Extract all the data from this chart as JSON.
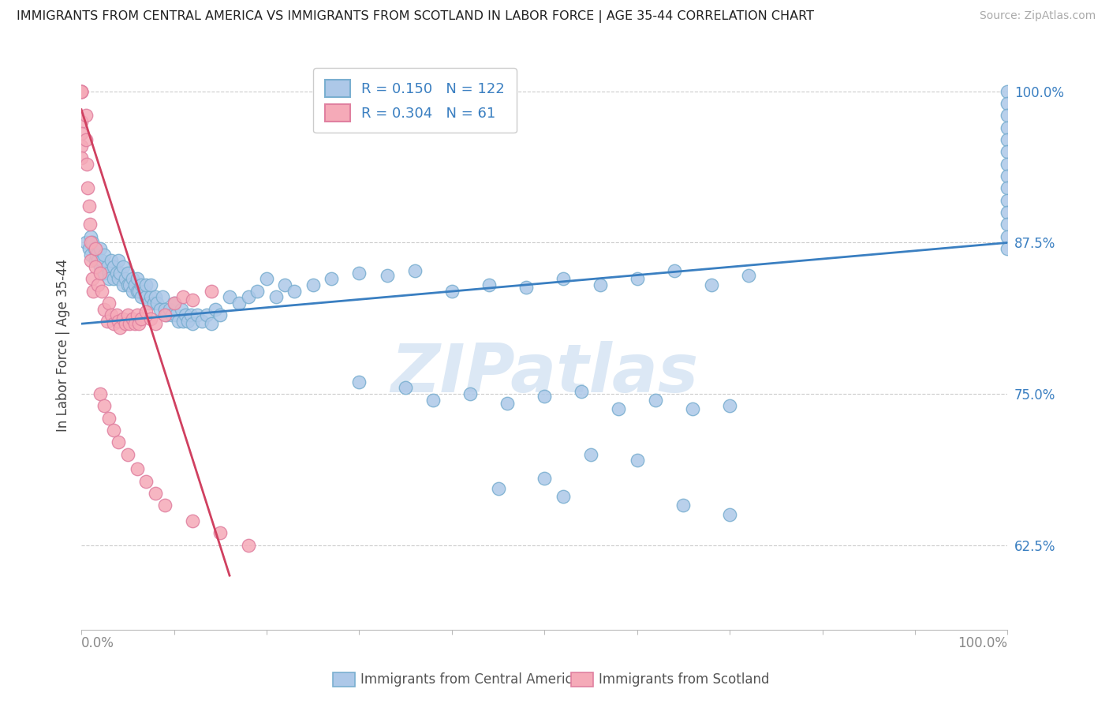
{
  "title": "IMMIGRANTS FROM CENTRAL AMERICA VS IMMIGRANTS FROM SCOTLAND IN LABOR FORCE | AGE 35-44 CORRELATION CHART",
  "source": "Source: ZipAtlas.com",
  "ylabel": "In Labor Force | Age 35-44",
  "y_ticks": [
    0.625,
    0.75,
    0.875,
    1.0
  ],
  "y_tick_labels": [
    "62.5%",
    "75.0%",
    "87.5%",
    "100.0%"
  ],
  "blue_label": "Immigrants from Central America",
  "pink_label": "Immigrants from Scotland",
  "blue_R": 0.15,
  "blue_N": 122,
  "pink_R": 0.304,
  "pink_N": 61,
  "blue_color": "#adc8e8",
  "pink_color": "#f5aab8",
  "blue_edge_color": "#7aafd0",
  "pink_edge_color": "#e080a0",
  "blue_line_color": "#3a7fc1",
  "pink_line_color": "#d04060",
  "background_color": "#ffffff",
  "grid_color": "#cccccc",
  "title_color": "#222222",
  "tick_label_color": "#3a7fc1",
  "source_color": "#aaaaaa",
  "ylabel_color": "#444444",
  "bottom_label_color": "#555555",
  "watermark_color": "#dce8f5",
  "watermark_text": "ZIPatlas",
  "blue_trend_x": [
    0.0,
    1.0
  ],
  "blue_trend_y": [
    0.808,
    0.875
  ],
  "pink_trend_x": [
    0.0,
    0.16
  ],
  "pink_trend_y": [
    0.985,
    0.6
  ],
  "xlim": [
    0.0,
    1.0
  ],
  "ylim": [
    0.555,
    1.025
  ],
  "x_tick_positions": [
    0.0,
    0.1,
    0.2,
    0.3,
    0.4,
    0.5,
    0.6,
    0.7,
    0.8,
    0.9,
    1.0
  ],
  "blue_x": [
    0.005,
    0.008,
    0.01,
    0.01,
    0.012,
    0.014,
    0.015,
    0.016,
    0.018,
    0.02,
    0.02,
    0.022,
    0.025,
    0.025,
    0.028,
    0.03,
    0.03,
    0.032,
    0.035,
    0.035,
    0.038,
    0.04,
    0.04,
    0.042,
    0.045,
    0.045,
    0.048,
    0.05,
    0.05,
    0.052,
    0.055,
    0.055,
    0.058,
    0.06,
    0.06,
    0.062,
    0.065,
    0.065,
    0.068,
    0.07,
    0.07,
    0.072,
    0.075,
    0.075,
    0.078,
    0.08,
    0.082,
    0.085,
    0.088,
    0.09,
    0.092,
    0.095,
    0.098,
    0.1,
    0.102,
    0.105,
    0.108,
    0.11,
    0.112,
    0.115,
    0.118,
    0.12,
    0.125,
    0.13,
    0.135,
    0.14,
    0.145,
    0.15,
    0.16,
    0.17,
    0.18,
    0.19,
    0.2,
    0.21,
    0.22,
    0.23,
    0.25,
    0.27,
    0.3,
    0.33,
    0.36,
    0.4,
    0.44,
    0.48,
    0.52,
    0.56,
    0.6,
    0.64,
    0.68,
    0.72,
    0.3,
    0.35,
    0.38,
    0.42,
    0.46,
    0.5,
    0.54,
    0.58,
    0.62,
    0.66,
    0.7,
    0.55,
    0.6,
    0.5,
    0.45,
    0.52,
    0.65,
    0.7,
    1.0,
    1.0,
    1.0,
    1.0,
    1.0,
    1.0,
    1.0,
    1.0,
    1.0,
    1.0,
    1.0,
    1.0,
    1.0,
    1.0
  ],
  "blue_y": [
    0.875,
    0.87,
    0.865,
    0.88,
    0.875,
    0.87,
    0.86,
    0.865,
    0.86,
    0.855,
    0.87,
    0.86,
    0.85,
    0.865,
    0.855,
    0.85,
    0.845,
    0.86,
    0.855,
    0.845,
    0.85,
    0.845,
    0.86,
    0.85,
    0.84,
    0.855,
    0.845,
    0.84,
    0.85,
    0.84,
    0.835,
    0.845,
    0.84,
    0.835,
    0.845,
    0.835,
    0.84,
    0.83,
    0.835,
    0.83,
    0.84,
    0.825,
    0.83,
    0.84,
    0.825,
    0.83,
    0.825,
    0.82,
    0.83,
    0.82,
    0.815,
    0.82,
    0.815,
    0.825,
    0.815,
    0.81,
    0.82,
    0.81,
    0.815,
    0.81,
    0.815,
    0.808,
    0.815,
    0.81,
    0.815,
    0.808,
    0.82,
    0.815,
    0.83,
    0.825,
    0.83,
    0.835,
    0.845,
    0.83,
    0.84,
    0.835,
    0.84,
    0.845,
    0.85,
    0.848,
    0.852,
    0.835,
    0.84,
    0.838,
    0.845,
    0.84,
    0.845,
    0.852,
    0.84,
    0.848,
    0.76,
    0.755,
    0.745,
    0.75,
    0.742,
    0.748,
    0.752,
    0.738,
    0.745,
    0.738,
    0.74,
    0.7,
    0.695,
    0.68,
    0.672,
    0.665,
    0.658,
    0.65,
    1.0,
    0.99,
    0.98,
    0.97,
    0.96,
    0.95,
    0.94,
    0.93,
    0.92,
    0.91,
    0.9,
    0.89,
    0.88,
    0.87
  ],
  "pink_x": [
    0.0,
    0.0,
    0.0,
    0.0,
    0.0,
    0.0,
    0.0,
    0.0,
    0.005,
    0.005,
    0.006,
    0.007,
    0.008,
    0.009,
    0.01,
    0.01,
    0.012,
    0.013,
    0.015,
    0.015,
    0.018,
    0.02,
    0.022,
    0.025,
    0.028,
    0.03,
    0.032,
    0.035,
    0.038,
    0.04,
    0.042,
    0.045,
    0.048,
    0.05,
    0.052,
    0.055,
    0.058,
    0.06,
    0.062,
    0.065,
    0.07,
    0.075,
    0.08,
    0.09,
    0.1,
    0.11,
    0.12,
    0.14,
    0.02,
    0.025,
    0.03,
    0.035,
    0.04,
    0.05,
    0.06,
    0.07,
    0.08,
    0.09,
    0.12,
    0.15,
    0.18
  ],
  "pink_y": [
    1.0,
    1.0,
    1.0,
    1.0,
    0.975,
    0.965,
    0.955,
    0.945,
    0.98,
    0.96,
    0.94,
    0.92,
    0.905,
    0.89,
    0.875,
    0.86,
    0.845,
    0.835,
    0.87,
    0.855,
    0.84,
    0.85,
    0.835,
    0.82,
    0.81,
    0.825,
    0.815,
    0.808,
    0.815,
    0.81,
    0.805,
    0.812,
    0.808,
    0.815,
    0.808,
    0.812,
    0.808,
    0.815,
    0.808,
    0.812,
    0.818,
    0.812,
    0.808,
    0.815,
    0.825,
    0.83,
    0.828,
    0.835,
    0.75,
    0.74,
    0.73,
    0.72,
    0.71,
    0.7,
    0.688,
    0.678,
    0.668,
    0.658,
    0.645,
    0.635,
    0.625
  ]
}
